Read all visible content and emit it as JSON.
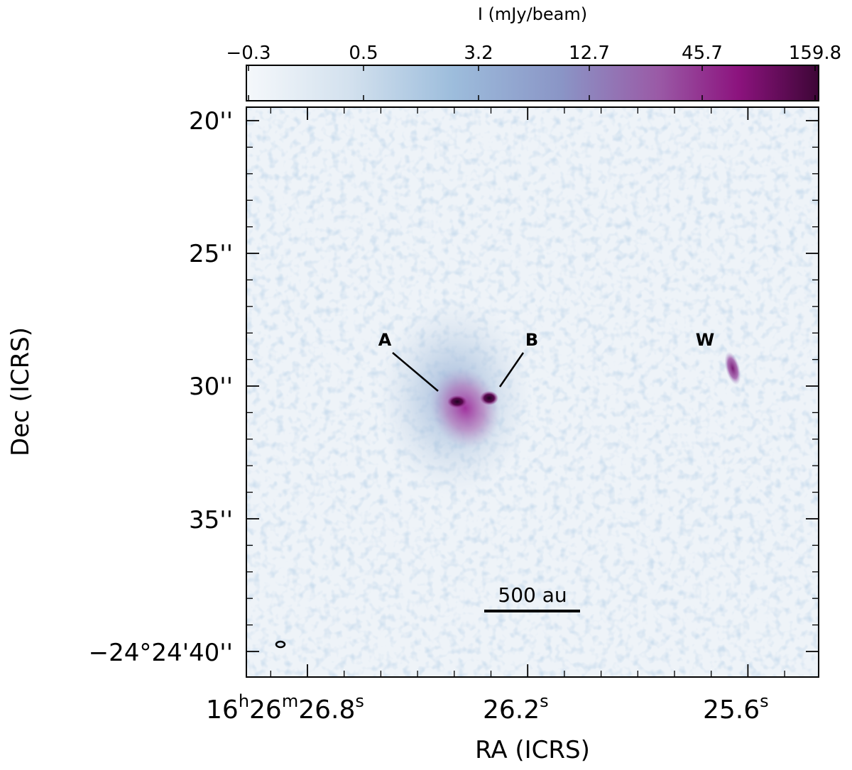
{
  "colorbar": {
    "title": "I (mJy/beam)",
    "ticks": [
      "−0.3",
      "0.5",
      "3.2",
      "12.7",
      "45.7",
      "159.8"
    ]
  },
  "axes": {
    "ylabel": "Dec (ICRS)",
    "xlabel": "RA (ICRS)",
    "dec_ticks": [
      "20''",
      "25''",
      "30''",
      "35''",
      "−24°24'40''"
    ],
    "ra_ticks": [
      {
        "main": "16",
        "h": "h",
        "m_val": "26",
        "m": "m",
        "s_val": "26.8",
        "s": "s"
      },
      {
        "main": "26.2",
        "s": "s"
      },
      {
        "main": "25.6",
        "s": "s"
      }
    ]
  },
  "sources": [
    {
      "name": "A"
    },
    {
      "name": "B"
    },
    {
      "name": "W"
    }
  ],
  "scalebar": {
    "label": "500 au"
  },
  "colors": {
    "background_low": "#eef3f8",
    "noise_mid": "#c5d6e8",
    "cmap_mid": "#8fb2d6",
    "cmap_high": "#7a1f7e",
    "cmap_peak": "#3b0a3a"
  }
}
